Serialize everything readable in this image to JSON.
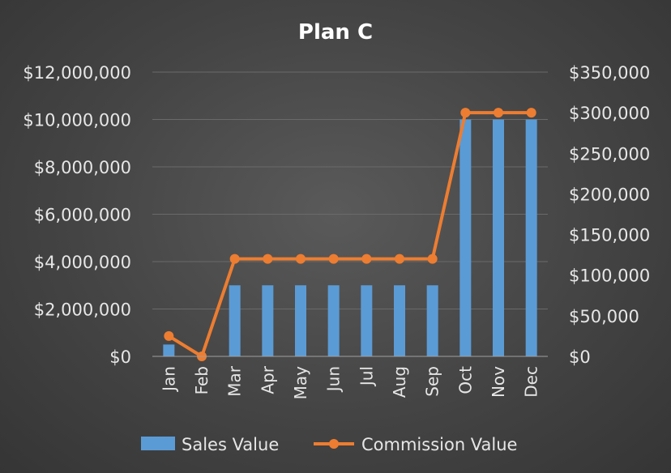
{
  "chart_data": {
    "type": "bar+line",
    "title": "Plan C",
    "categories": [
      "Jan",
      "Feb",
      "Mar",
      "Apr",
      "May",
      "Jun",
      "Jul",
      "Aug",
      "Sep",
      "Oct",
      "Nov",
      "Dec"
    ],
    "series": [
      {
        "name": "Sales Value",
        "type": "bar",
        "axis": "left",
        "color": "#5b9bd5",
        "values": [
          500000,
          0,
          3000000,
          3000000,
          3000000,
          3000000,
          3000000,
          3000000,
          3000000,
          10000000,
          10000000,
          10000000
        ]
      },
      {
        "name": "Commission Value",
        "type": "line",
        "axis": "right",
        "color": "#ed7d31",
        "values": [
          25000,
          0,
          120000,
          120000,
          120000,
          120000,
          120000,
          120000,
          120000,
          300000,
          300000,
          300000
        ]
      }
    ],
    "y_left": {
      "min": 0,
      "max": 12000000,
      "ticks": [
        0,
        2000000,
        4000000,
        6000000,
        8000000,
        10000000,
        12000000
      ],
      "tick_labels": [
        "$0",
        "$2,000,000",
        "$4,000,000",
        "$6,000,000",
        "$8,000,000",
        "$10,000,000",
        "$12,000,000"
      ]
    },
    "y_right": {
      "min": 0,
      "max": 350000,
      "ticks": [
        0,
        50000,
        100000,
        150000,
        200000,
        250000,
        300000,
        350000
      ],
      "tick_labels": [
        "$0",
        "$50,000",
        "$100,000",
        "$150,000",
        "$200,000",
        "$250,000",
        "$300,000",
        "$350,000"
      ]
    },
    "grid": true,
    "legend": "bottom"
  }
}
